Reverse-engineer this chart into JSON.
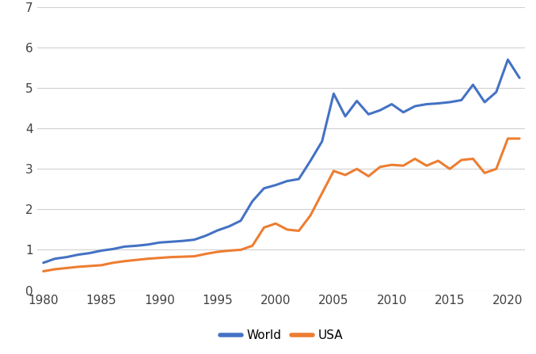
{
  "years": [
    1980,
    1981,
    1982,
    1983,
    1984,
    1985,
    1986,
    1987,
    1988,
    1989,
    1990,
    1991,
    1992,
    1993,
    1994,
    1995,
    1996,
    1997,
    1998,
    1999,
    2000,
    2001,
    2002,
    2003,
    2004,
    2005,
    2006,
    2007,
    2008,
    2009,
    2010,
    2011,
    2012,
    2013,
    2014,
    2015,
    2016,
    2017,
    2018,
    2019,
    2020,
    2021
  ],
  "world": [
    0.68,
    0.78,
    0.82,
    0.88,
    0.92,
    0.98,
    1.02,
    1.08,
    1.1,
    1.13,
    1.18,
    1.2,
    1.22,
    1.25,
    1.35,
    1.48,
    1.58,
    1.72,
    2.2,
    2.52,
    2.6,
    2.7,
    2.75,
    3.2,
    3.68,
    4.86,
    4.3,
    4.68,
    4.35,
    4.45,
    4.6,
    4.4,
    4.55,
    4.6,
    4.62,
    4.65,
    4.7,
    5.08,
    4.65,
    4.9,
    5.7,
    5.25
  ],
  "usa": [
    0.47,
    0.52,
    0.55,
    0.58,
    0.6,
    0.62,
    0.68,
    0.72,
    0.75,
    0.78,
    0.8,
    0.82,
    0.83,
    0.84,
    0.9,
    0.95,
    0.98,
    1.0,
    1.1,
    1.55,
    1.65,
    1.5,
    1.47,
    1.85,
    2.4,
    2.95,
    2.85,
    3.0,
    2.82,
    3.05,
    3.1,
    3.08,
    3.25,
    3.08,
    3.2,
    3.0,
    3.22,
    3.25,
    2.9,
    3.0,
    3.75,
    3.75
  ],
  "world_color": "#4472C4",
  "usa_color": "#ED7D31",
  "linewidth": 2.2,
  "ylim": [
    0,
    7
  ],
  "yticks": [
    0,
    1,
    2,
    3,
    4,
    5,
    6,
    7
  ],
  "xticks": [
    1980,
    1985,
    1990,
    1995,
    2000,
    2005,
    2010,
    2015,
    2020
  ],
  "grid_color": "#D0D0D0",
  "bg_color": "#FFFFFF",
  "legend_labels": [
    "World",
    "USA"
  ],
  "tick_fontsize": 11,
  "xlim_left": 1979.5,
  "xlim_right": 2021.5
}
